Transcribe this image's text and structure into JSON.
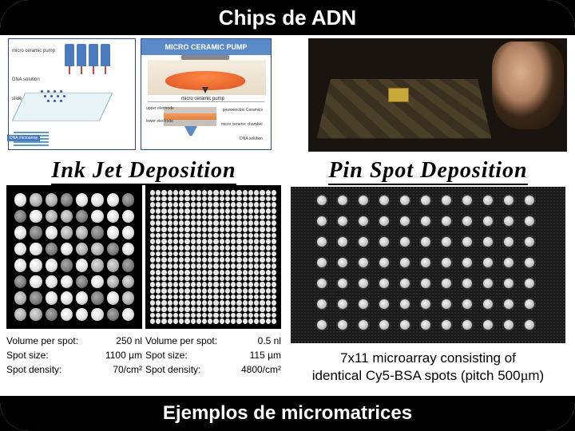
{
  "title": "Chips de ADN",
  "footer": "Ejemplos de micromatrices",
  "diagram_a": {
    "label_pump": "micro ceramic pump",
    "label_dna": "DNA solution",
    "label_slide": "slide glass",
    "legend": "DNA microarray"
  },
  "diagram_b": {
    "header": "MICRO CERAMIC PUMP",
    "caption": "micro ceramic pump",
    "sch_upper": "upper electrode",
    "sch_piezo": "piezoelectric Ceramics",
    "sch_lower": "lower electrode",
    "sch_chamber": "micro ceramic chamber",
    "sch_dna": "DNA solution"
  },
  "inkjet": {
    "title": "Ink Jet Deposition",
    "large": {
      "vol_label": "Volume per spot:",
      "vol_value": "250 nl",
      "size_label": "Spot size:",
      "size_value": "1100 µm",
      "dens_label": "Spot density:",
      "dens_value": "70/cm²"
    },
    "small": {
      "vol_label": "Volume per spot:",
      "vol_value": "0.5 nl",
      "size_label": "Spot size:",
      "size_value": "115 µm",
      "dens_label": "Spot density:",
      "dens_value": "4800/cm²"
    }
  },
  "pinspot": {
    "title": "Pin Spot Deposition",
    "caption_line1": "7x11 microarray consisting of",
    "caption_line2_a": "identical Cy5-BSA spots (pitch 500",
    "caption_line2_b": "m)"
  },
  "colors": {
    "background_top": "#d8f4f6",
    "background_bottom": "#b0e8ec",
    "bar": "#000000",
    "bar_text": "#ffffff"
  }
}
